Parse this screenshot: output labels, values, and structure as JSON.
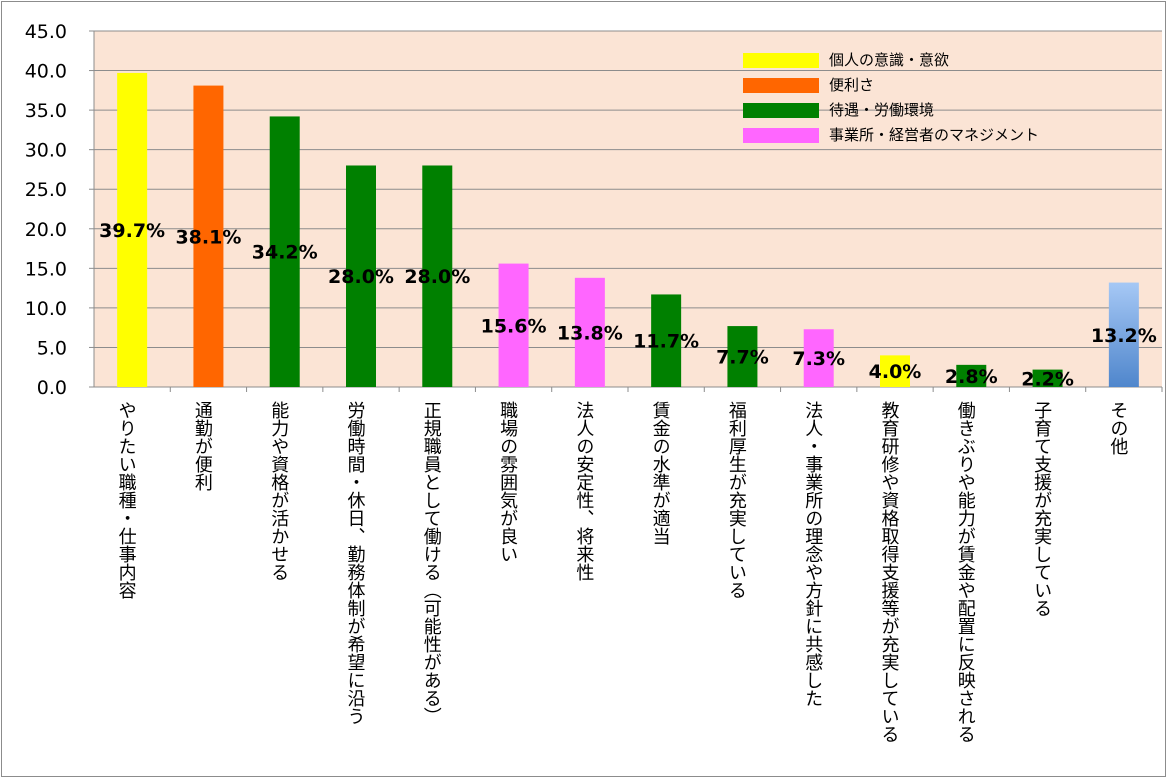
{
  "chart_data": {
    "type": "bar",
    "categories": [
      "やりたい職種・仕事内容",
      "通勤が便利",
      "能力や資格が活かせる",
      "労働時間・休日、勤務体制が希望に沿う",
      "正規職員として働ける（可能性がある）",
      "職場の雰囲気が良い",
      "法人の安定性、将来性",
      "賃金の水準が適当",
      "福利厚生が充実している",
      "法人・事業所の理念や方針に共感した",
      "教育研修や資格取得支援等が充実している",
      "働きぶりや能力が賃金や配置に反映される",
      "子育て支援が充実している",
      "その他"
    ],
    "values": [
      39.7,
      38.1,
      34.2,
      28.0,
      28.0,
      15.6,
      13.8,
      11.7,
      7.7,
      7.3,
      4.0,
      2.8,
      2.2,
      13.2
    ],
    "value_labels": [
      "39.7%",
      "38.1%",
      "34.2%",
      "28.0%",
      "28.0%",
      "15.6%",
      "13.8%",
      "11.7%",
      "7.7%",
      "7.3%",
      "4.0%",
      "2.8%",
      "2.2%",
      "13.2%"
    ],
    "groups": [
      "individual",
      "convenience",
      "conditions",
      "conditions",
      "conditions",
      "management",
      "management",
      "conditions",
      "conditions",
      "management",
      "individual",
      "conditions",
      "conditions",
      "other"
    ],
    "legend": [
      {
        "key": "individual",
        "label": "個人の意識・意欲",
        "color": "#ffff00"
      },
      {
        "key": "convenience",
        "label": "便利さ",
        "color": "#ff6600"
      },
      {
        "key": "conditions",
        "label": "待遇・労働環境",
        "color": "#008000"
      },
      {
        "key": "management",
        "label": "事業所・経営者のマネジメント",
        "color": "#ff66ff"
      }
    ],
    "other_colors": [
      "#a6c8f5",
      "#4f86cc"
    ],
    "y_ticks": [
      "0.0",
      "5.0",
      "10.0",
      "15.0",
      "20.0",
      "25.0",
      "30.0",
      "35.0",
      "40.0",
      "45.0"
    ],
    "ylim": [
      0,
      45
    ],
    "grid": true,
    "legend_position": "top-right",
    "plot_background": "#fbe4d5"
  }
}
